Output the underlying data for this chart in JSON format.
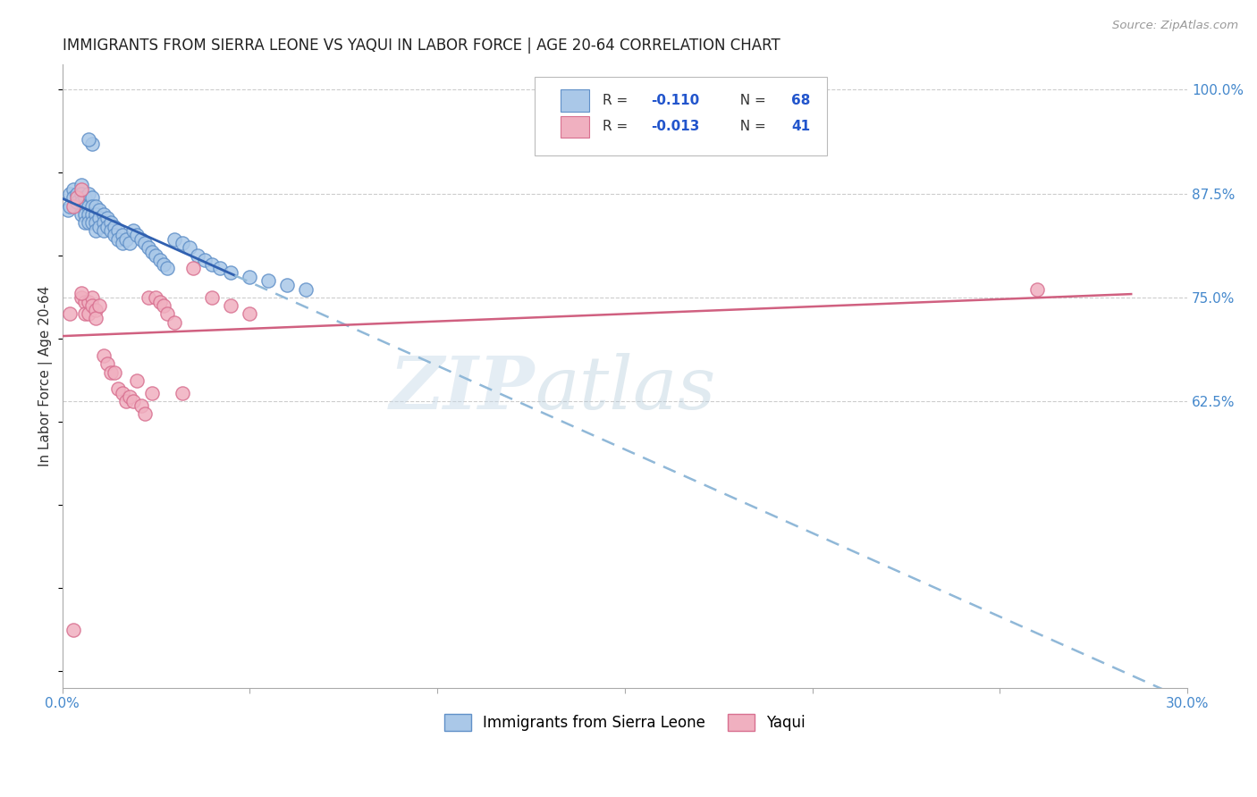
{
  "title": "IMMIGRANTS FROM SIERRA LEONE VS YAQUI IN LABOR FORCE | AGE 20-64 CORRELATION CHART",
  "source": "Source: ZipAtlas.com",
  "ylabel": "In Labor Force | Age 20-64",
  "xlim": [
    0.0,
    0.3
  ],
  "ylim": [
    0.28,
    1.03
  ],
  "blue_color": "#aac8e8",
  "blue_edge_color": "#6090c8",
  "blue_line_color": "#3060b0",
  "blue_dash_color": "#90b8d8",
  "pink_color": "#f0b0c0",
  "pink_edge_color": "#d87090",
  "pink_line_color": "#d06080",
  "label_color": "#4488cc",
  "text_color": "#333333",
  "grid_color": "#cccccc",
  "legend_R_color": "#333333",
  "legend_val_color": "#2255cc",
  "sierra_leone_x": [
    0.0015,
    0.002,
    0.002,
    0.003,
    0.003,
    0.004,
    0.004,
    0.005,
    0.005,
    0.005,
    0.005,
    0.006,
    0.006,
    0.006,
    0.006,
    0.007,
    0.007,
    0.007,
    0.007,
    0.008,
    0.008,
    0.008,
    0.008,
    0.009,
    0.009,
    0.009,
    0.009,
    0.01,
    0.01,
    0.01,
    0.011,
    0.011,
    0.011,
    0.012,
    0.012,
    0.013,
    0.013,
    0.014,
    0.014,
    0.015,
    0.015,
    0.016,
    0.016,
    0.017,
    0.018,
    0.019,
    0.02,
    0.021,
    0.022,
    0.023,
    0.024,
    0.025,
    0.026,
    0.027,
    0.028,
    0.03,
    0.032,
    0.034,
    0.036,
    0.038,
    0.04,
    0.042,
    0.045,
    0.05,
    0.055,
    0.06,
    0.065,
    0.008
  ],
  "sierra_leone_y": [
    0.855,
    0.86,
    0.875,
    0.88,
    0.87,
    0.875,
    0.865,
    0.885,
    0.875,
    0.865,
    0.85,
    0.87,
    0.86,
    0.85,
    0.84,
    0.875,
    0.86,
    0.85,
    0.84,
    0.87,
    0.86,
    0.85,
    0.84,
    0.86,
    0.85,
    0.84,
    0.83,
    0.855,
    0.845,
    0.835,
    0.85,
    0.84,
    0.83,
    0.845,
    0.835,
    0.84,
    0.83,
    0.835,
    0.825,
    0.83,
    0.82,
    0.825,
    0.815,
    0.82,
    0.815,
    0.83,
    0.825,
    0.82,
    0.815,
    0.81,
    0.805,
    0.8,
    0.795,
    0.79,
    0.785,
    0.82,
    0.815,
    0.81,
    0.8,
    0.795,
    0.79,
    0.785,
    0.78,
    0.775,
    0.77,
    0.765,
    0.76,
    0.935
  ],
  "sierra_leone_y2": [
    0.94
  ],
  "sierra_leone_x2": [
    0.007
  ],
  "yaqui_x": [
    0.002,
    0.003,
    0.004,
    0.005,
    0.005,
    0.006,
    0.006,
    0.007,
    0.007,
    0.008,
    0.008,
    0.009,
    0.009,
    0.01,
    0.011,
    0.012,
    0.013,
    0.014,
    0.015,
    0.016,
    0.017,
    0.018,
    0.019,
    0.02,
    0.021,
    0.022,
    0.023,
    0.024,
    0.025,
    0.026,
    0.027,
    0.028,
    0.03,
    0.032,
    0.035,
    0.04,
    0.045,
    0.05,
    0.26,
    0.005,
    0.003
  ],
  "yaqui_y": [
    0.73,
    0.86,
    0.87,
    0.88,
    0.75,
    0.745,
    0.73,
    0.745,
    0.73,
    0.75,
    0.74,
    0.735,
    0.725,
    0.74,
    0.68,
    0.67,
    0.66,
    0.66,
    0.64,
    0.635,
    0.625,
    0.63,
    0.625,
    0.65,
    0.62,
    0.61,
    0.75,
    0.635,
    0.75,
    0.745,
    0.74,
    0.73,
    0.72,
    0.635,
    0.785,
    0.75,
    0.74,
    0.73,
    0.76,
    0.755,
    0.35
  ]
}
